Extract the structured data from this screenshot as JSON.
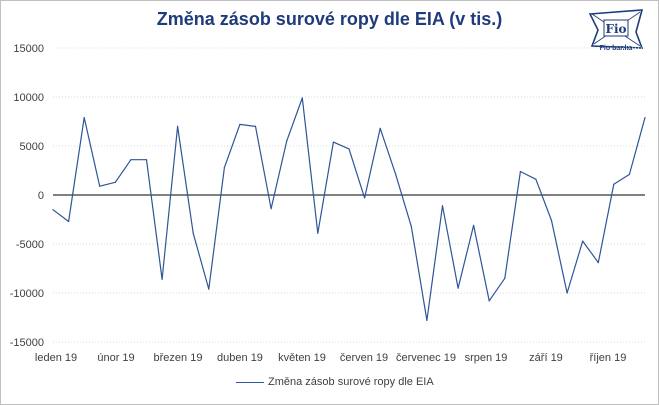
{
  "chart_data": {
    "type": "line",
    "title": "Změna zásob surové ropy dle EIA (v tis.)",
    "xlabel": "",
    "ylabel": "",
    "ylim": [
      -15000,
      15000
    ],
    "yticks": [
      "15000",
      "10000",
      "5000",
      "0",
      "-5000",
      "-10000",
      "-15000"
    ],
    "ytick_values": [
      15000,
      10000,
      5000,
      0,
      -5000,
      -10000,
      -15000
    ],
    "xlabels": [
      "leden 19",
      "únor 19",
      "březen 19",
      "duben 19",
      "květen 19",
      "červen 19",
      "červenec 19",
      "srpen 19",
      "září 19",
      "říjen 19"
    ],
    "grid": true,
    "legend_position": "bottom",
    "series": [
      {
        "name": "Změna zásob surové ropy dle EIA",
        "color": "#2e5597",
        "values": [
          -1500,
          -2700,
          7900,
          900,
          1300,
          3600,
          3600,
          -8600,
          7000,
          -3900,
          -9600,
          2800,
          7200,
          7000,
          -1400,
          5500,
          9900,
          -3900,
          5400,
          4700,
          -300,
          6800,
          2100,
          -3200,
          -12800,
          -1100,
          -9500,
          -3100,
          -10800,
          -8500,
          2400,
          1600,
          -2600,
          -10000,
          -4700,
          -6900,
          1100,
          2100,
          7900
        ]
      }
    ]
  },
  "logo": {
    "text": "Fio banka"
  }
}
